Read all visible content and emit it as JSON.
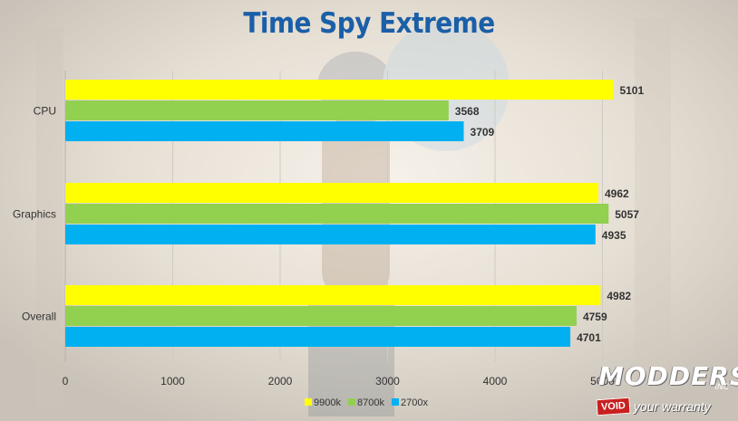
{
  "chart_data": {
    "type": "bar",
    "orientation": "horizontal",
    "title": "Time Spy Extreme",
    "categories": [
      "CPU",
      "Graphics",
      "Overall"
    ],
    "series": [
      {
        "name": "9900k",
        "color": "#ffff00",
        "values": [
          5101,
          4962,
          4982
        ]
      },
      {
        "name": "8700k",
        "color": "#92d050",
        "values": [
          3568,
          5057,
          4759
        ]
      },
      {
        "name": "2700x",
        "color": "#00b0f0",
        "values": [
          3709,
          4935,
          4701
        ]
      }
    ],
    "xlim": [
      0,
      6000
    ],
    "x_ticks": [
      "0",
      "1000",
      "2000",
      "3000",
      "4000",
      "5000"
    ],
    "grid": "vertical",
    "legend_position": "bottom"
  },
  "watermark": {
    "brand": "MODDERS",
    "suffix": "INC",
    "void_label": "VOID",
    "slogan": "your warranty"
  }
}
